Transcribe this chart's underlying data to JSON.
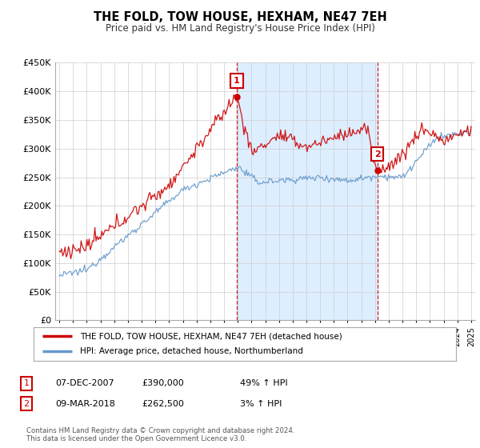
{
  "title": "THE FOLD, TOW HOUSE, HEXHAM, NE47 7EH",
  "subtitle": "Price paid vs. HM Land Registry's House Price Index (HPI)",
  "red_label": "THE FOLD, TOW HOUSE, HEXHAM, NE47 7EH (detached house)",
  "blue_label": "HPI: Average price, detached house, Northumberland",
  "transactions": [
    {
      "num": "1",
      "date": "07-DEC-2007",
      "price": "£390,000",
      "hpi": "49% ↑ HPI"
    },
    {
      "num": "2",
      "date": "09-MAR-2018",
      "price": "£262,500",
      "hpi": "3% ↑ HPI"
    }
  ],
  "footer": "Contains HM Land Registry data © Crown copyright and database right 2024.\nThis data is licensed under the Open Government Licence v3.0.",
  "ylim": [
    0,
    450000
  ],
  "yticks": [
    0,
    50000,
    100000,
    150000,
    200000,
    250000,
    300000,
    350000,
    400000,
    450000
  ],
  "xlim_start": 1994.7,
  "xlim_end": 2025.3,
  "red_color": "#cc0000",
  "blue_color": "#6699cc",
  "marker1_x": 2007.92,
  "marker1_y": 390000,
  "marker2_x": 2018.17,
  "marker2_y": 262500,
  "shade_color": "#ddeeff",
  "vline_color": "#cc0000",
  "background_color": "#ffffff",
  "grid_color": "#cccccc"
}
